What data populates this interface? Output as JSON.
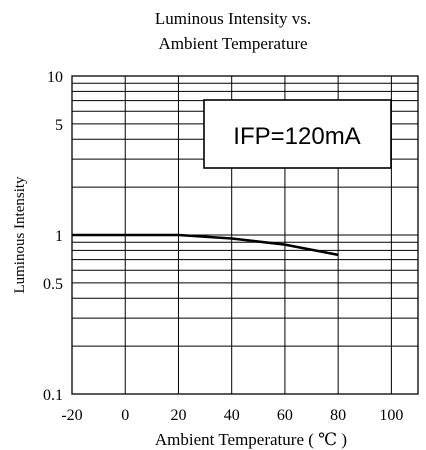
{
  "chart_data": {
    "type": "line",
    "title_lines": [
      "Luminous Intensity vs.",
      "Ambient Temperature"
    ],
    "xlabel": "Ambient Temperature ( ℃ )",
    "ylabel": "Luminous Intensity",
    "xlim": [
      -20,
      110
    ],
    "ylim": [
      0.1,
      10
    ],
    "y_scale": "log",
    "x_ticks": [
      -20,
      0,
      20,
      40,
      60,
      80,
      100
    ],
    "x_tick_labels": [
      "-20",
      "0",
      "20",
      "40",
      "60",
      "80",
      "100"
    ],
    "y_tick_values": [
      10,
      5,
      1,
      0.5,
      0.1
    ],
    "y_tick_labels": [
      "10",
      "5",
      "1",
      "0.5",
      "0.1"
    ],
    "grid": true,
    "annotation": "IFP=120mA",
    "series": [
      {
        "x": [
          -20,
          0,
          20,
          40,
          60,
          80
        ],
        "y": [
          1.0,
          1.0,
          1.0,
          0.95,
          0.87,
          0.75
        ]
      }
    ]
  }
}
